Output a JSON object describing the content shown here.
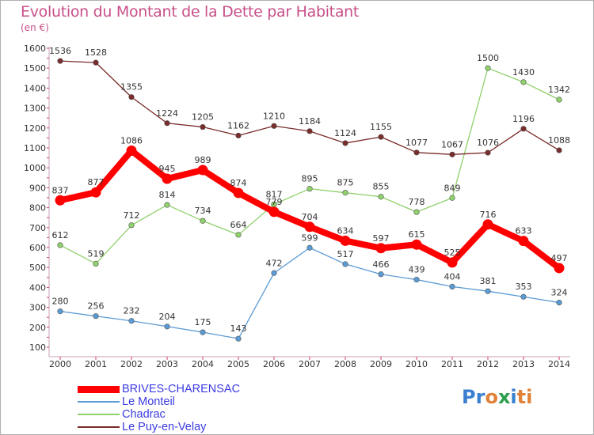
{
  "header": {
    "title": "Evolution du Montant de la Dette par Habitant",
    "unit": "(en €)"
  },
  "brand": {
    "logo_text": "Proxiti",
    "letter_colors": [
      "#3a7fd0",
      "#3a7fd0",
      "#e0823a",
      "#2e9e4f",
      "#3a7fd0",
      "#e0823a",
      "#e0823a"
    ]
  },
  "chart_data": {
    "type": "line",
    "title": "Evolution du Montant de la Dette par Habitant",
    "subtitle": "(en €)",
    "xlabel": "",
    "ylabel": "",
    "x": [
      "2000",
      "2001",
      "2002",
      "2003",
      "2004",
      "2005",
      "2006",
      "2007",
      "2008",
      "2009",
      "2010",
      "2011",
      "2012",
      "2013",
      "2014"
    ],
    "ylim": [
      100,
      1600
    ],
    "yticks": [
      100,
      200,
      300,
      400,
      500,
      600,
      700,
      800,
      900,
      1000,
      1100,
      1200,
      1300,
      1400,
      1500,
      1600
    ],
    "grid": false,
    "legend_position": "bottom-left",
    "series": [
      {
        "name": "BRIVES-CHARENSAC",
        "color": "#ff0000",
        "emphasis": true,
        "values": [
          837,
          877,
          1086,
          945,
          989,
          874,
          779,
          704,
          634,
          597,
          615,
          525,
          716,
          633,
          497
        ]
      },
      {
        "name": "Le Monteil",
        "color": "#5b9bd5",
        "emphasis": false,
        "values": [
          280,
          256,
          232,
          204,
          175,
          143,
          472,
          599,
          517,
          466,
          439,
          404,
          381,
          353,
          324
        ]
      },
      {
        "name": "Chadrac",
        "color": "#8fd16b",
        "emphasis": false,
        "values": [
          612,
          519,
          712,
          814,
          734,
          664,
          817,
          895,
          875,
          855,
          778,
          849,
          1500,
          1430,
          1342
        ]
      },
      {
        "name": "Le Puy-en-Velay",
        "color": "#7a2b2b",
        "emphasis": false,
        "values": [
          1536,
          1528,
          1355,
          1224,
          1205,
          1162,
          1210,
          1184,
          1124,
          1155,
          1077,
          1067,
          1076,
          1196,
          1088
        ]
      }
    ]
  }
}
